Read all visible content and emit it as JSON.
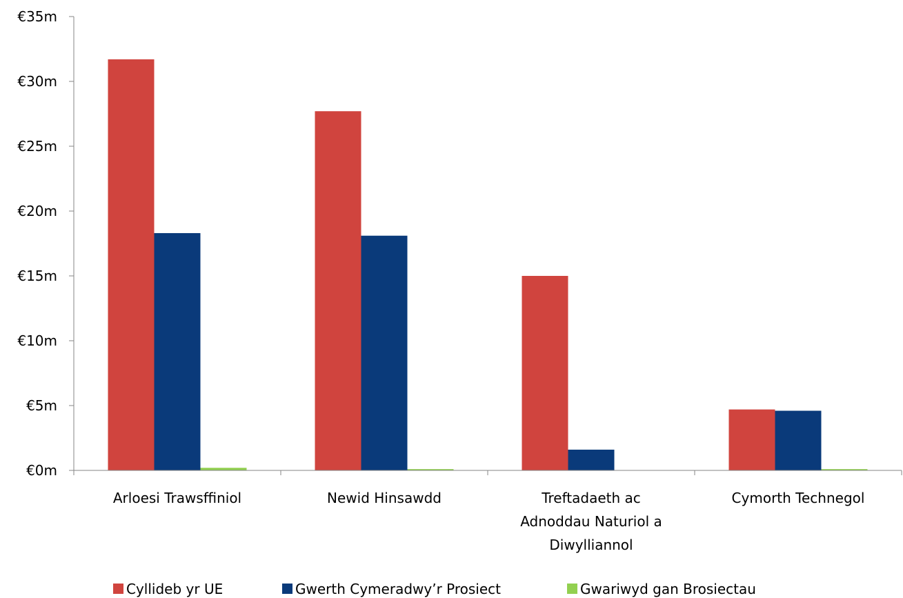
{
  "chart_data": {
    "type": "bar",
    "categories": [
      [
        "Arloesi Trawsffiniol"
      ],
      [
        "Newid Hinsawdd"
      ],
      [
        "Treftadaeth ac",
        "Adnoddau Naturiol a",
        "Diwylliannol"
      ],
      [
        "Cymorth Technegol"
      ]
    ],
    "series": [
      {
        "name": "Cyllideb yr UE",
        "color": "#D0443E",
        "values": [
          31.7,
          27.7,
          15.0,
          4.7
        ]
      },
      {
        "name": "Gwerth Cymeradwy’r Prosiect",
        "color": "#0A3A7A",
        "values": [
          18.3,
          18.1,
          1.6,
          4.6
        ]
      },
      {
        "name": "Gwariwyd gan Brosiectau",
        "color": "#92D050",
        "values": [
          0.2,
          0.1,
          0.0,
          0.1
        ]
      }
    ],
    "y_ticks": [
      "€0m",
      "€5m",
      "€10m",
      "€15m",
      "€20m",
      "€25m",
      "€30m",
      "€35m"
    ],
    "ylim": [
      0,
      35
    ],
    "y_unit": "millions EUR",
    "grid": false,
    "legend_position": "bottom"
  }
}
